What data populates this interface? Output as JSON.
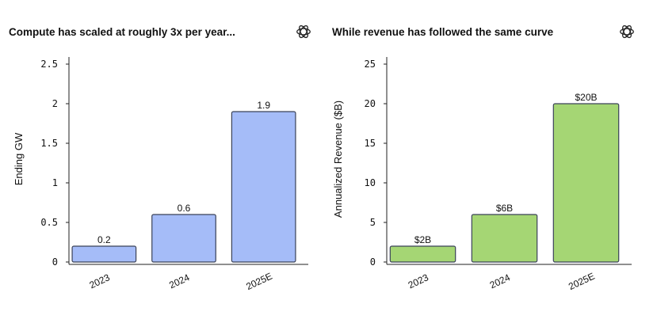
{
  "chart_data": [
    {
      "type": "bar",
      "title": "Compute has scaled at roughly 3x per year...",
      "categories": [
        "2023",
        "2024",
        "2025E"
      ],
      "values": [
        0.2,
        0.6,
        1.9
      ],
      "data_labels": [
        "0.2",
        "0.6",
        "1.9"
      ],
      "xlabel": "",
      "ylabel": "Ending GW",
      "ylim": [
        0,
        2.6
      ],
      "yticks": [
        0,
        0.5,
        1,
        1.5,
        2,
        2.5
      ],
      "ytick_labels": [
        "0",
        "0.5",
        "1",
        "1.5",
        "2",
        "2.5"
      ],
      "bar_color": "#a5bcf8",
      "grid": false,
      "icon": "openai-logo-icon"
    },
    {
      "type": "bar",
      "title": "While revenue has followed the same curve",
      "categories": [
        "2023",
        "2024",
        "2025E"
      ],
      "values": [
        2,
        6,
        20
      ],
      "data_labels": [
        "$2B",
        "$6B",
        "$20B"
      ],
      "xlabel": "",
      "ylabel": "Annualized Revenue ($B)",
      "ylim": [
        0,
        26
      ],
      "yticks": [
        0,
        5,
        10,
        15,
        20,
        25
      ],
      "ytick_labels": [
        "0",
        "5",
        "10",
        "15",
        "20",
        "25"
      ],
      "bar_color": "#a5d674",
      "grid": false,
      "icon": "openai-logo-icon"
    }
  ]
}
